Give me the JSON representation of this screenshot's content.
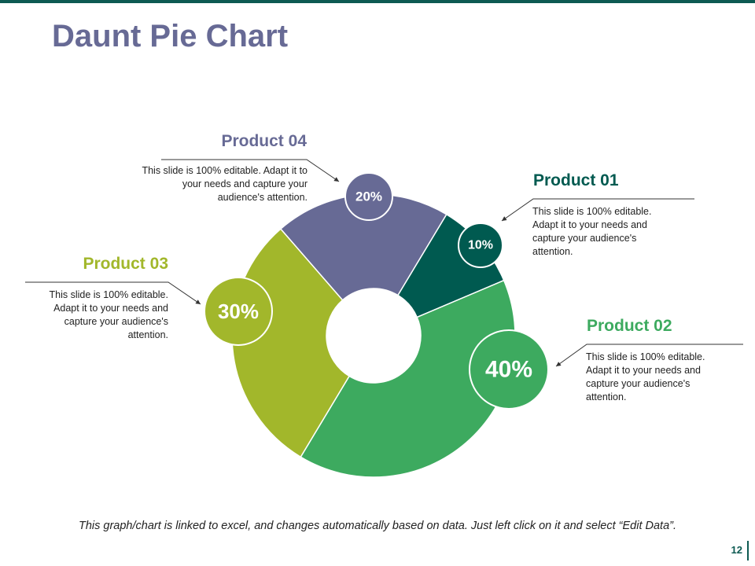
{
  "chart_data": {
    "type": "pie",
    "title": "Daunt Pie Chart",
    "categories": [
      "Product 01",
      "Product 02",
      "Product 03",
      "Product 04"
    ],
    "values": [
      10,
      40,
      30,
      20
    ],
    "value_labels": [
      "10%",
      "40%",
      "30%",
      "20%"
    ],
    "colors": [
      "#005a50",
      "#3daa5f",
      "#a2b72b",
      "#676a95"
    ],
    "descriptions": [
      "This slide is 100% editable. Adapt it to your needs and capture your audience's attention.",
      "This slide is 100% editable. Adapt it to your needs and capture your audience's attention.",
      "This slide is 100% editable. Adapt it to your needs and capture your audience's attention.",
      "This slide is 100% editable. Adapt it to your needs and capture your audience's attention."
    ]
  },
  "footer": {
    "note": "This graph/chart is linked to excel, and changes automatically based on data. Just left click on it and select “Edit Data”.",
    "page": "12"
  }
}
